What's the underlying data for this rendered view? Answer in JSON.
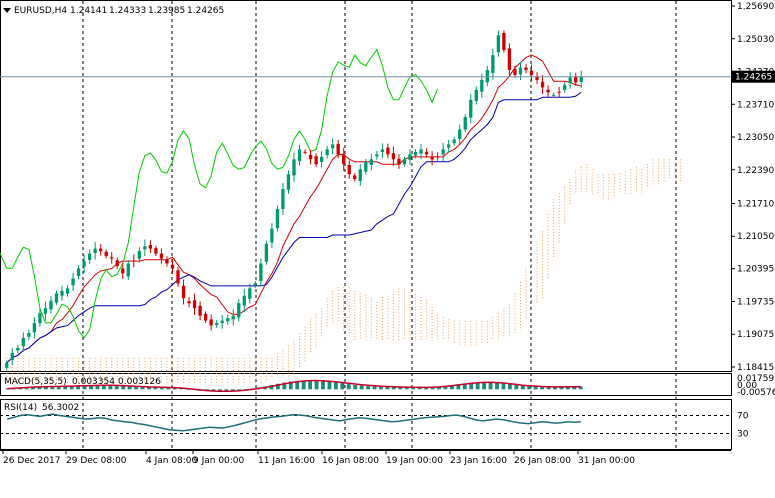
{
  "symbol_header": {
    "symbol": "EURUSD,H4",
    "open": "1.24141",
    "high": "1.24333",
    "low": "1.23985",
    "close": "1.24265"
  },
  "macd_header": {
    "label": "MACD(5,35,5)",
    "main": "0.003354",
    "signal": "0.003126"
  },
  "rsi_header": {
    "label": "RSI(14)",
    "value": "56.3002"
  },
  "colors": {
    "bull": "#009a6e",
    "bear": "#d10000",
    "tenkan": "#d40000",
    "kijun": "#0000b4",
    "chikou": "#00c800",
    "kumo": "#f0a050",
    "macd_hist": "#1f8a78",
    "macd_signal": "#c8002a",
    "rsi_line": "#1f6e78",
    "price_line": "#7090a8"
  },
  "chart_data": [
    {
      "type": "candlestick",
      "title": "EURUSD,H4",
      "y_ticks": [
        "1.25690",
        "1.25030",
        "1.24370",
        "1.23710",
        "1.23050",
        "1.22390",
        "1.21710",
        "1.21050",
        "1.20395",
        "1.19735",
        "1.19075",
        "1.18415"
      ],
      "y_tick_values": [
        1.2569,
        1.2503,
        1.2437,
        1.2371,
        1.2305,
        1.2239,
        1.2171,
        1.2105,
        1.20395,
        1.19735,
        1.19075,
        1.18415
      ],
      "ylim": [
        1.18415,
        1.2569
      ],
      "current_price": 1.24265,
      "current_price_label": "1.24265",
      "x_ticks": [
        "26 Dec 2017",
        "29 Dec 08:00",
        "4 Jan 08:00",
        "9 Jan 00:00",
        "11 Jan 16:00",
        "16 Jan 08:00",
        "19 Jan 00:00",
        "23 Jan 16:00",
        "26 Jan 08:00",
        "31 Jan 00:00"
      ],
      "grid": "vertical dashed at period separators",
      "indicators": [
        "Ichimoku Tenkan-sen",
        "Ichimoku Kijun-sen",
        "Chikou Span",
        "Kumo cloud"
      ],
      "candles_anchor_close": [
        1.185,
        1.187,
        1.188,
        1.19,
        1.191,
        1.193,
        1.195,
        1.196,
        1.1975,
        1.199,
        1.1995,
        1.2,
        1.202,
        1.204,
        1.2055,
        1.207,
        1.208,
        1.2075,
        1.2065,
        1.206,
        1.2045,
        1.203,
        1.205,
        1.2055,
        1.2075,
        1.2085,
        1.208,
        1.207,
        1.206,
        1.205,
        1.204,
        1.201,
        1.198,
        1.197,
        1.196,
        1.1945,
        1.1935,
        1.1925,
        1.193,
        1.1935,
        1.194,
        1.1945,
        1.197,
        1.1985,
        1.2,
        1.201,
        1.205,
        1.209,
        1.212,
        1.216,
        1.22,
        1.223,
        1.226,
        1.228,
        1.2275,
        1.226,
        1.225,
        1.2265,
        1.228,
        1.229,
        1.227,
        1.225,
        1.223,
        1.222,
        1.224,
        1.2255,
        1.226,
        1.227,
        1.228,
        1.227,
        1.226,
        1.225,
        1.226,
        1.227,
        1.2275,
        1.228,
        1.227,
        1.226,
        1.2265,
        1.228,
        1.229,
        1.23,
        1.232,
        1.2345,
        1.238,
        1.24,
        1.242,
        1.244,
        1.247,
        1.251,
        1.248,
        1.244,
        1.243,
        1.2445,
        1.244,
        1.243,
        1.242,
        1.2405,
        1.2395,
        1.239,
        1.2395,
        1.241,
        1.2425,
        1.2415,
        1.2426
      ]
    },
    {
      "type": "bar",
      "title": "MACD(5,35,5)",
      "y_ticks": [
        "0.017591",
        "0.00",
        "-0.005767"
      ],
      "ylim": [
        -0.005767,
        0.017591
      ],
      "series": [
        {
          "name": "MACD",
          "values": [
            0.001,
            0.0015,
            0.002,
            0.0025,
            0.003,
            0.0032,
            0.0034,
            0.0036,
            0.0038,
            0.004,
            0.0042,
            0.0044,
            0.0046,
            0.0048,
            0.005,
            0.0052,
            0.005,
            0.0046,
            0.0042,
            0.0038,
            0.0034,
            0.003,
            0.0028,
            0.0026,
            0.0024,
            0.0022,
            0.0018,
            0.001,
            0.0,
            -0.001,
            -0.0018,
            -0.0024,
            -0.0028,
            -0.0028,
            -0.0024,
            -0.0018,
            -0.001,
            0.0,
            0.001,
            0.0022,
            0.0036,
            0.0052,
            0.0068,
            0.0084,
            0.0096,
            0.0104,
            0.0108,
            0.011,
            0.0108,
            0.0102,
            0.0094,
            0.0084,
            0.0074,
            0.0064,
            0.0054,
            0.0046,
            0.004,
            0.0036,
            0.0032,
            0.003,
            0.0028,
            0.0026,
            0.0024,
            0.0022,
            0.0022,
            0.0024,
            0.0028,
            0.0034,
            0.0042,
            0.0052,
            0.0062,
            0.0072,
            0.008,
            0.0086,
            0.0088,
            0.0086,
            0.008,
            0.0072,
            0.0062,
            0.0052,
            0.0044,
            0.0038,
            0.0034,
            0.003,
            0.0028,
            0.0028,
            0.003,
            0.0032,
            0.0034,
            0.0034
          ]
        },
        {
          "name": "Signal",
          "values": [
            0.0008,
            0.0012,
            0.0017,
            0.0022,
            0.0027,
            0.003,
            0.0032,
            0.0034,
            0.0036,
            0.0038,
            0.004,
            0.0042,
            0.0044,
            0.0046,
            0.0048,
            0.005,
            0.005,
            0.0048,
            0.0045,
            0.0041,
            0.0037,
            0.0033,
            0.003,
            0.0028,
            0.0026,
            0.0024,
            0.0021,
            0.0016,
            0.0009,
            0.0001,
            -0.0008,
            -0.0015,
            -0.0021,
            -0.0025,
            -0.0025,
            -0.0022,
            -0.0017,
            -0.001,
            -0.0001,
            0.001,
            0.0022,
            0.0036,
            0.0052,
            0.0068,
            0.0082,
            0.0094,
            0.0102,
            0.0107,
            0.0108,
            0.0106,
            0.01,
            0.0092,
            0.0083,
            0.0074,
            0.0065,
            0.0056,
            0.0049,
            0.0043,
            0.0038,
            0.0034,
            0.0031,
            0.0029,
            0.0027,
            0.0025,
            0.0024,
            0.0024,
            0.0026,
            0.003,
            0.0036,
            0.0044,
            0.0054,
            0.0064,
            0.0073,
            0.008,
            0.0085,
            0.0086,
            0.0083,
            0.0077,
            0.0069,
            0.006,
            0.0051,
            0.0044,
            0.0039,
            0.0035,
            0.0032,
            0.003,
            0.003,
            0.0031,
            0.0032,
            0.0031
          ]
        }
      ]
    },
    {
      "type": "line",
      "title": "RSI(14)",
      "y_ticks": [
        "70",
        "30"
      ],
      "ylim": [
        0,
        100
      ],
      "levels": [
        70,
        30
      ],
      "series": [
        {
          "name": "RSI",
          "values": [
            62,
            66,
            70,
            72,
            70,
            68,
            71,
            73,
            70,
            68,
            66,
            64,
            62,
            63,
            65,
            64,
            60,
            58,
            56,
            55,
            52,
            50,
            47,
            44,
            41,
            38,
            37,
            36,
            38,
            40,
            42,
            44,
            43,
            42,
            45,
            48,
            52,
            56,
            60,
            63,
            65,
            67,
            68,
            70,
            72,
            71,
            69,
            66,
            64,
            62,
            60,
            58,
            61,
            63,
            65,
            64,
            62,
            60,
            58,
            56,
            57,
            59,
            61,
            63,
            65,
            66,
            67,
            68,
            70,
            71,
            68,
            64,
            60,
            58,
            60,
            62,
            61,
            58,
            55,
            53,
            52,
            54,
            56,
            55,
            53,
            54,
            56,
            55,
            56
          ]
        }
      ]
    }
  ]
}
